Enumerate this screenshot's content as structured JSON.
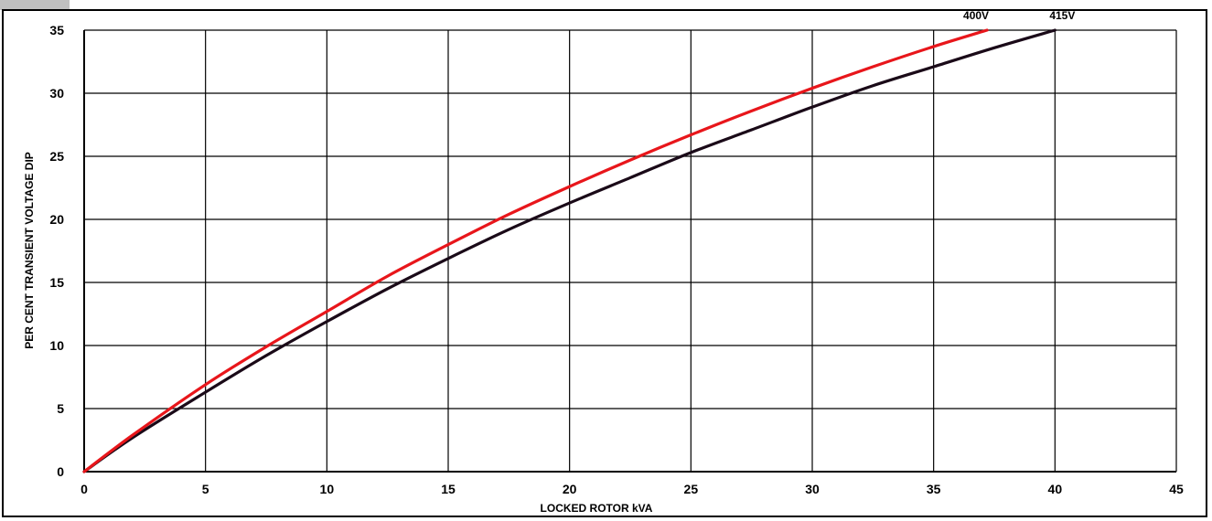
{
  "chart_data": {
    "type": "line",
    "title": "",
    "xlabel": "LOCKED ROTOR kVA",
    "ylabel": "PER CENT TRANSIENT VOLTAGE DIP",
    "xlim": [
      0,
      45
    ],
    "ylim": [
      0,
      35
    ],
    "x_ticks": [
      "0",
      "5",
      "10",
      "15",
      "20",
      "25",
      "30",
      "35",
      "40",
      "45"
    ],
    "y_ticks": [
      "0",
      "5",
      "10",
      "15",
      "20",
      "25",
      "30",
      "35"
    ],
    "grid": true,
    "series": [
      {
        "name": "400V",
        "color": "#e8161b",
        "x": [
          0,
          2,
          5,
          7.5,
          10,
          12.5,
          15,
          17.5,
          20,
          22.5,
          25,
          27.5,
          30,
          32.5,
          35,
          37.2
        ],
        "values": [
          0,
          2.9,
          6.9,
          9.9,
          12.7,
          15.5,
          18.0,
          20.4,
          22.6,
          24.7,
          26.7,
          28.6,
          30.4,
          32.1,
          33.7,
          35.0
        ]
      },
      {
        "name": "415V",
        "color": "#1a0a18",
        "x": [
          0,
          2,
          5,
          7.5,
          10,
          12.5,
          15,
          17.5,
          20,
          22.5,
          25,
          27.5,
          30,
          32.5,
          35,
          37.5,
          40
        ],
        "values": [
          0,
          2.7,
          6.3,
          9.2,
          11.9,
          14.5,
          16.9,
          19.2,
          21.3,
          23.3,
          25.3,
          27.1,
          28.9,
          30.6,
          32.1,
          33.6,
          35.0
        ]
      }
    ]
  }
}
